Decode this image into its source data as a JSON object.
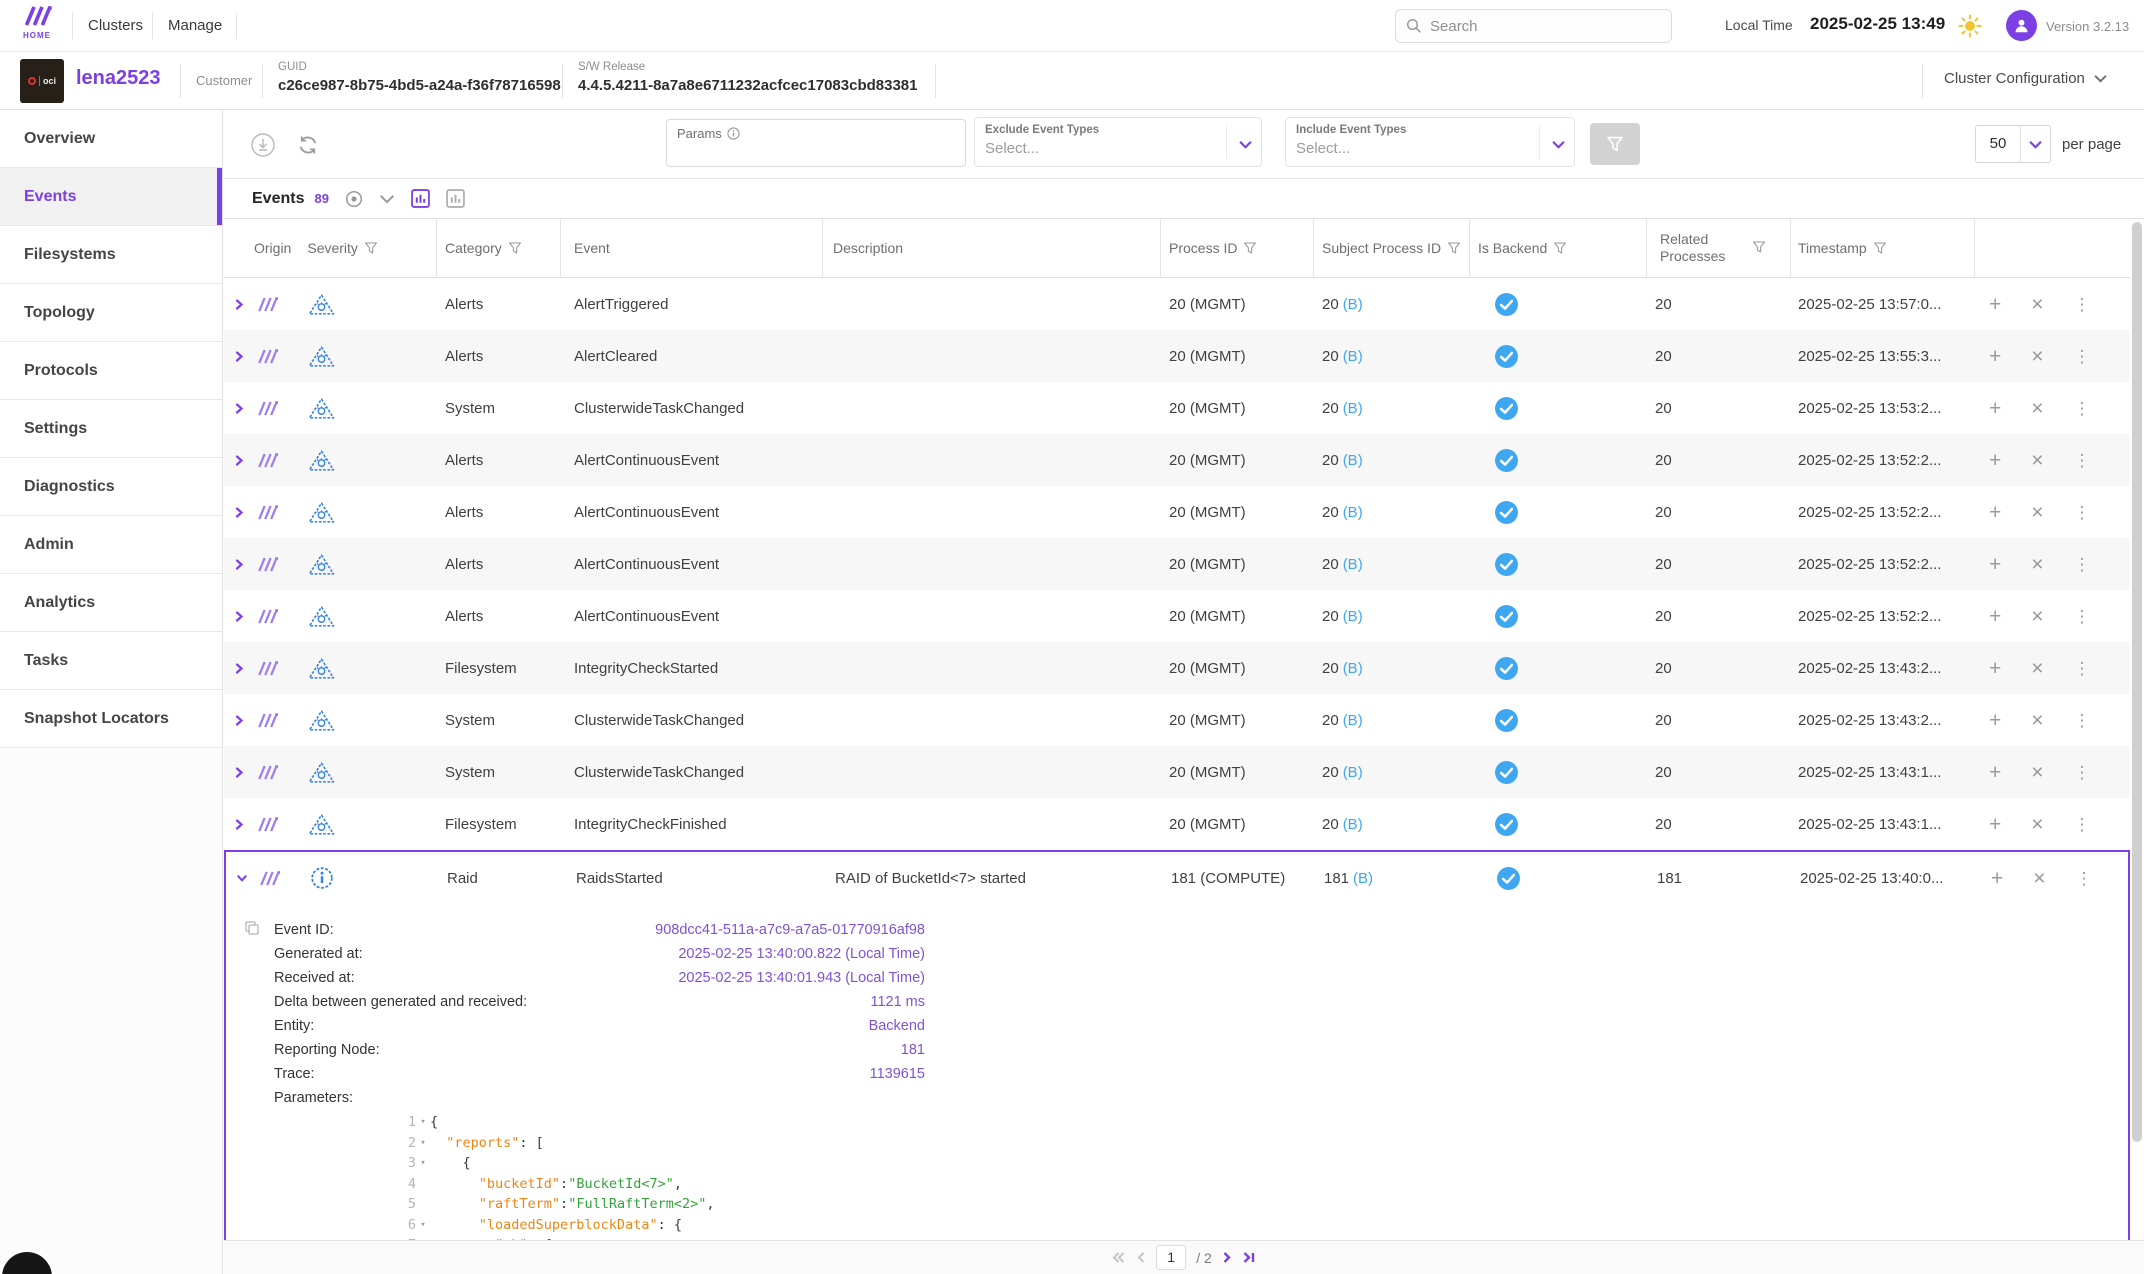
{
  "topbar": {
    "home": "HOME",
    "nav": {
      "clusters": "Clusters",
      "manage": "Manage"
    },
    "search_placeholder": "Search",
    "local_time_label": "Local Time",
    "local_time": "2025-02-25 13:49",
    "version": "Version 3.2.13"
  },
  "cluster_header": {
    "name": "lena2523",
    "customer_label": "Customer",
    "guid_label": "GUID",
    "guid": "c26ce987-8b75-4bd5-a24a-f36f78716598",
    "sw_label": "S/W Release",
    "sw": "4.4.5.4211-8a7a8e6711232acfcec17083cbd83381",
    "config_label": "Cluster Configuration",
    "logo_text": "oci"
  },
  "sidebar": {
    "items": [
      {
        "label": "Overview",
        "active": false
      },
      {
        "label": "Events",
        "active": true
      },
      {
        "label": "Filesystems",
        "active": false
      },
      {
        "label": "Topology",
        "active": false
      },
      {
        "label": "Protocols",
        "active": false
      },
      {
        "label": "Settings",
        "active": false
      },
      {
        "label": "Diagnostics",
        "active": false
      },
      {
        "label": "Admin",
        "active": false
      },
      {
        "label": "Analytics",
        "active": false
      },
      {
        "label": "Tasks",
        "active": false
      },
      {
        "label": "Snapshot Locators",
        "active": false
      }
    ]
  },
  "toolbar": {
    "params_label": "Params",
    "exclude_label": "Exclude Event Types",
    "include_label": "Include Event Types",
    "select_placeholder": "Select...",
    "page_size": "50",
    "per_page_label": "per page"
  },
  "table": {
    "title": "Events",
    "count": "89",
    "columns": [
      "Origin",
      "Severity",
      "Category",
      "Event",
      "Description",
      "Process ID",
      "Subject Process ID",
      "Is Backend",
      "Related Processes",
      "Timestamp"
    ],
    "rows": [
      {
        "category": "Alerts",
        "event": "AlertTriggered",
        "description": "",
        "pid": "20 (MGMT)",
        "spid": "20",
        "spid_b": "(B)",
        "related": "20",
        "timestamp": "2025-02-25 13:57:0...",
        "severity": "alert",
        "expanded": false
      },
      {
        "category": "Alerts",
        "event": "AlertCleared",
        "description": "",
        "pid": "20 (MGMT)",
        "spid": "20",
        "spid_b": "(B)",
        "related": "20",
        "timestamp": "2025-02-25 13:55:3...",
        "severity": "alert",
        "expanded": false
      },
      {
        "category": "System",
        "event": "ClusterwideTaskChanged",
        "description": "",
        "pid": "20 (MGMT)",
        "spid": "20",
        "spid_b": "(B)",
        "related": "20",
        "timestamp": "2025-02-25 13:53:2...",
        "severity": "alert",
        "expanded": false
      },
      {
        "category": "Alerts",
        "event": "AlertContinuousEvent",
        "description": "",
        "pid": "20 (MGMT)",
        "spid": "20",
        "spid_b": "(B)",
        "related": "20",
        "timestamp": "2025-02-25 13:52:2...",
        "severity": "alert",
        "expanded": false
      },
      {
        "category": "Alerts",
        "event": "AlertContinuousEvent",
        "description": "",
        "pid": "20 (MGMT)",
        "spid": "20",
        "spid_b": "(B)",
        "related": "20",
        "timestamp": "2025-02-25 13:52:2...",
        "severity": "alert",
        "expanded": false
      },
      {
        "category": "Alerts",
        "event": "AlertContinuousEvent",
        "description": "",
        "pid": "20 (MGMT)",
        "spid": "20",
        "spid_b": "(B)",
        "related": "20",
        "timestamp": "2025-02-25 13:52:2...",
        "severity": "alert",
        "expanded": false
      },
      {
        "category": "Alerts",
        "event": "AlertContinuousEvent",
        "description": "",
        "pid": "20 (MGMT)",
        "spid": "20",
        "spid_b": "(B)",
        "related": "20",
        "timestamp": "2025-02-25 13:52:2...",
        "severity": "alert",
        "expanded": false
      },
      {
        "category": "Filesystem",
        "event": "IntegrityCheckStarted",
        "description": "",
        "pid": "20 (MGMT)",
        "spid": "20",
        "spid_b": "(B)",
        "related": "20",
        "timestamp": "2025-02-25 13:43:2...",
        "severity": "alert",
        "expanded": false
      },
      {
        "category": "System",
        "event": "ClusterwideTaskChanged",
        "description": "",
        "pid": "20 (MGMT)",
        "spid": "20",
        "spid_b": "(B)",
        "related": "20",
        "timestamp": "2025-02-25 13:43:2...",
        "severity": "alert",
        "expanded": false
      },
      {
        "category": "System",
        "event": "ClusterwideTaskChanged",
        "description": "",
        "pid": "20 (MGMT)",
        "spid": "20",
        "spid_b": "(B)",
        "related": "20",
        "timestamp": "2025-02-25 13:43:1...",
        "severity": "alert",
        "expanded": false
      },
      {
        "category": "Filesystem",
        "event": "IntegrityCheckFinished",
        "description": "",
        "pid": "20 (MGMT)",
        "spid": "20",
        "spid_b": "(B)",
        "related": "20",
        "timestamp": "2025-02-25 13:43:1...",
        "severity": "alert",
        "expanded": false
      },
      {
        "category": "Raid",
        "event": "RaidsStarted",
        "description": "RAID of BucketId<7> started",
        "pid": "181 (COMPUTE)",
        "spid": "181",
        "spid_b": "(B)",
        "related": "181",
        "timestamp": "2025-02-25 13:40:0...",
        "severity": "info",
        "expanded": true
      }
    ]
  },
  "details": {
    "fields": [
      {
        "label": "Event ID:",
        "value": "908dcc41-511a-a7c9-a7a5-01770916af98"
      },
      {
        "label": "Generated at:",
        "value": "2025-02-25 13:40:00.822 (Local Time)"
      },
      {
        "label": "Received at:",
        "value": "2025-02-25 13:40:01.943 (Local Time)"
      },
      {
        "label": "Delta between generated and received:",
        "value": "1121 ms"
      },
      {
        "label": "Entity:",
        "value": "Backend"
      },
      {
        "label": "Reporting Node:",
        "value": "181"
      },
      {
        "label": "Trace:",
        "value": "1139615"
      }
    ],
    "params_label": "Parameters:",
    "code": [
      {
        "n": "1",
        "indent": 0,
        "collapse": true,
        "tokens": [
          {
            "t": "{",
            "c": "p"
          }
        ]
      },
      {
        "n": "2",
        "indent": 2,
        "collapse": true,
        "tokens": [
          {
            "t": "\"reports\"",
            "c": "k"
          },
          {
            "t": ": [",
            "c": "p"
          }
        ]
      },
      {
        "n": "3",
        "indent": 4,
        "collapse": true,
        "tokens": [
          {
            "t": "{",
            "c": "p"
          }
        ]
      },
      {
        "n": "4",
        "indent": 6,
        "collapse": false,
        "tokens": [
          {
            "t": "\"bucketId\"",
            "c": "k"
          },
          {
            "t": ": ",
            "c": "p"
          },
          {
            "t": "\"BucketId<7>\"",
            "c": "s"
          },
          {
            "t": ",",
            "c": "p"
          }
        ]
      },
      {
        "n": "5",
        "indent": 6,
        "collapse": false,
        "tokens": [
          {
            "t": "\"raftTerm\"",
            "c": "k"
          },
          {
            "t": ": ",
            "c": "p"
          },
          {
            "t": "\"FullRaftTerm<2>\"",
            "c": "s"
          },
          {
            "t": ",",
            "c": "p"
          }
        ]
      },
      {
        "n": "6",
        "indent": 6,
        "collapse": true,
        "tokens": [
          {
            "t": "\"loadedSuperblockData\"",
            "c": "k"
          },
          {
            "t": ": {",
            "c": "p"
          }
        ]
      },
      {
        "n": "7",
        "indent": 8,
        "collapse": false,
        "tokens": [
          {
            "t": "\"sb\"",
            "c": "k"
          },
          {
            "t": ": {",
            "c": "p"
          }
        ]
      }
    ]
  },
  "pagination": {
    "page": "1",
    "total": "/ 2"
  },
  "icons": {
    "plus": "+",
    "close": "×",
    "kebab": "⋮",
    "caret": "▾"
  },
  "colors": {
    "brand": "#7b3fe4",
    "blue": "#3ea7f2",
    "sev_blue": "#2f7fe8",
    "key_orange": "#ee8513",
    "str_green": "#35a33a"
  }
}
